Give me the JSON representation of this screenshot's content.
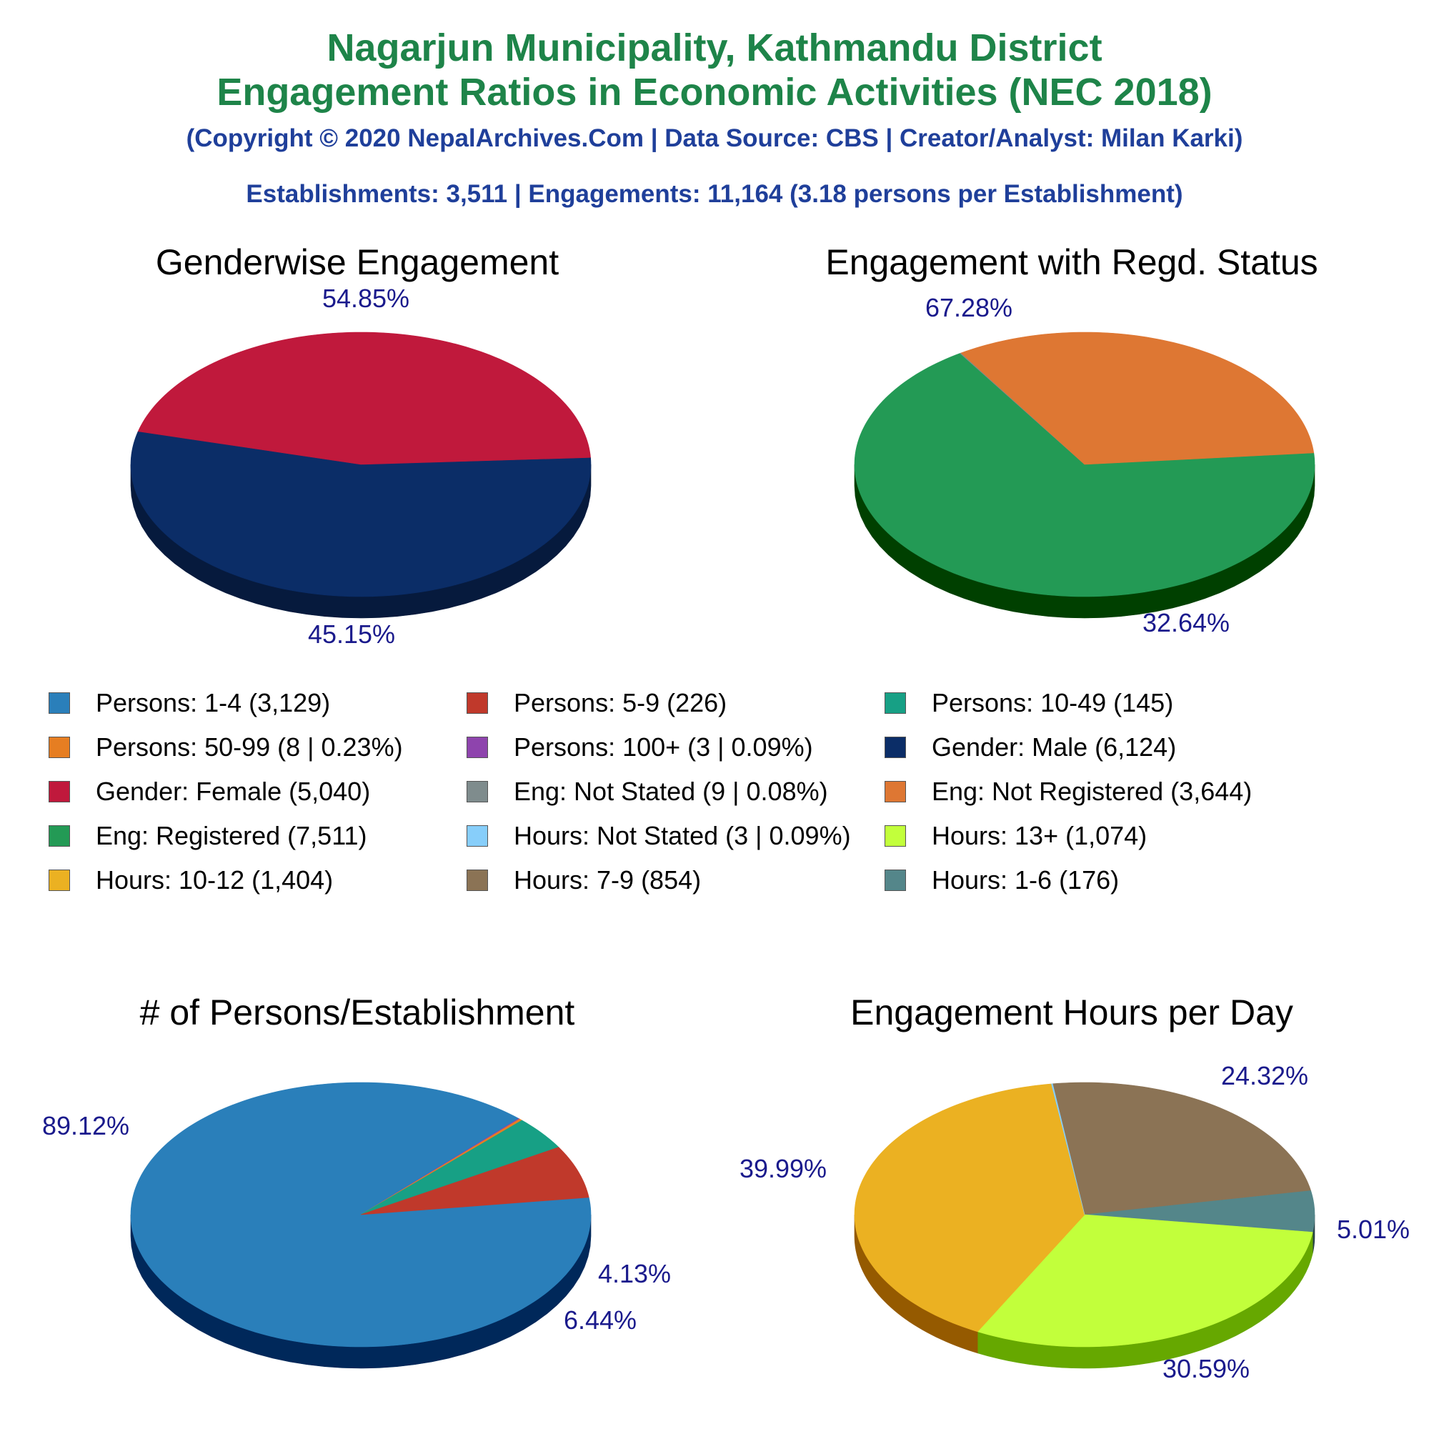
{
  "header": {
    "title_line1": "Nagarjun Municipality, Kathmandu District",
    "title_line2": "Engagement Ratios in Economic Activities (NEC 2018)",
    "copyright": "(Copyright © 2020 NepalArchives.Com | Data Source: CBS | Creator/Analyst: Milan Karki)",
    "summary": "Establishments: 3,511 | Engagements: 11,164 (3.18 persons per Establishment)"
  },
  "legend": [
    {
      "label": "Persons: 1-4 (3,129)",
      "color": "#2a7fba"
    },
    {
      "label": "Persons: 5-9 (226)",
      "color": "#c0392b"
    },
    {
      "label": "Persons: 10-49 (145)",
      "color": "#17a085"
    },
    {
      "label": "Persons: 50-99 (8 | 0.23%)",
      "color": "#e67e22"
    },
    {
      "label": "Persons: 100+ (3 | 0.09%)",
      "color": "#8e44ad"
    },
    {
      "label": "Gender: Male (6,124)",
      "color": "#0b2d67"
    },
    {
      "label": "Gender: Female (5,040)",
      "color": "#c0193c"
    },
    {
      "label": "Eng: Not Stated (9 | 0.08%)",
      "color": "#7f8c8d"
    },
    {
      "label": "Eng: Not Registered (3,644)",
      "color": "#de7733"
    },
    {
      "label": "Eng: Registered (7,511)",
      "color": "#239a55"
    },
    {
      "label": "Hours: Not Stated (3 | 0.09%)",
      "color": "#87cefa"
    },
    {
      "label": "Hours: 13+ (1,074)",
      "color": "#c2ff3b"
    },
    {
      "label": "Hours: 10-12 (1,404)",
      "color": "#ebb122"
    },
    {
      "label": "Hours: 7-9 (854)",
      "color": "#8b7355"
    },
    {
      "label": "Hours: 1-6 (176)",
      "color": "#54868a"
    }
  ],
  "chart_data": [
    {
      "type": "pie",
      "title": "Genderwise Engagement",
      "start_angle": -3,
      "slices": [
        {
          "name": "Gender: Male",
          "value": 6124,
          "percent": 54.85,
          "label": "54.85%",
          "color": "#0b2d67",
          "side": "#061a3d"
        },
        {
          "name": "Gender: Female",
          "value": 5040,
          "percent": 45.15,
          "label": "45.15%",
          "color": "#c0193c",
          "side": "#640000"
        }
      ]
    },
    {
      "type": "pie",
      "title": "Engagement with Regd. Status",
      "start_angle": -5,
      "slices": [
        {
          "name": "Eng: Registered",
          "value": 7511,
          "percent": 67.28,
          "label": "67.28%",
          "color": "#239a55",
          "side": "#004000"
        },
        {
          "name": "Eng: Not Stated",
          "value": 9,
          "percent": 0.08,
          "label": "",
          "color": "#7f8c8d",
          "side": "#4a5254"
        },
        {
          "name": "Eng: Not Registered",
          "value": 3644,
          "percent": 32.64,
          "label": "32.64%",
          "color": "#de7733",
          "side": "#7a1c00"
        }
      ]
    },
    {
      "type": "pie",
      "title": "# of Persons/Establishment",
      "start_angle": -7.5,
      "slices": [
        {
          "name": "Persons: 1-4",
          "value": 3129,
          "percent": 89.12,
          "label": "89.12%",
          "color": "#2a7fba",
          "side": "#00285a"
        },
        {
          "name": "Persons: 100+",
          "value": 3,
          "percent": 0.09,
          "label": "",
          "color": "#8e44ad",
          "side": "#4a1a60"
        },
        {
          "name": "Persons: 50-99",
          "value": 8,
          "percent": 0.23,
          "label": "",
          "color": "#e67e22",
          "side": "#7a3a00"
        },
        {
          "name": "Persons: 10-49",
          "value": 145,
          "percent": 4.13,
          "label": "4.13%",
          "color": "#17a085",
          "side": "#004a30"
        },
        {
          "name": "Persons: 5-9",
          "value": 226,
          "percent": 6.44,
          "label": "6.44%",
          "color": "#c0392b",
          "side": "#640000"
        }
      ]
    },
    {
      "type": "pie",
      "title": "Engagement Hours per Day",
      "start_angle": -98,
      "slices": [
        {
          "name": "Hours: 7-9",
          "value": 854,
          "percent": 24.32,
          "label": "24.32%",
          "color": "#8b7355",
          "side": "#4f3d28"
        },
        {
          "name": "Hours: 1-6",
          "value": 176,
          "percent": 5.01,
          "label": "5.01%",
          "color": "#54868a",
          "side": "#2a4548"
        },
        {
          "name": "Hours: 13+",
          "value": 1074,
          "percent": 30.59,
          "label": "30.59%",
          "color": "#c2ff3b",
          "side": "#66a800"
        },
        {
          "name": "Hours: 10-12",
          "value": 1404,
          "percent": 39.99,
          "label": "39.99%",
          "color": "#ebb122",
          "side": "#955a00"
        },
        {
          "name": "Hours: Not Stated",
          "value": 3,
          "percent": 0.09,
          "label": "",
          "color": "#87cefa",
          "side": "#4a7aa0"
        }
      ]
    }
  ]
}
